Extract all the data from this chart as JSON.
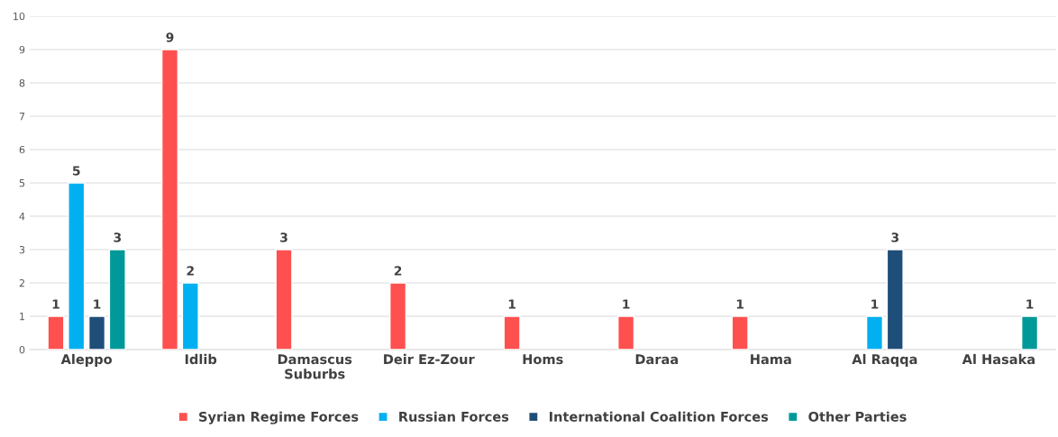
{
  "chart_data": {
    "type": "bar",
    "categories": [
      "Aleppo",
      "Idlib",
      "Damascus\nSuburbs",
      "Deir Ez-Zour",
      "Homs",
      "Daraa",
      "Hama",
      "Al Raqqa",
      "Al Hasaka"
    ],
    "series": [
      {
        "name": "Syrian Regime Forces",
        "color": "#ff5050",
        "values": [
          1,
          9,
          3,
          2,
          1,
          1,
          1,
          null,
          null
        ]
      },
      {
        "name": "Russian Forces",
        "color": "#00b0f0",
        "values": [
          5,
          2,
          null,
          null,
          null,
          null,
          null,
          1,
          null
        ]
      },
      {
        "name": "International Coalition Forces",
        "color": "#1f4e79",
        "values": [
          1,
          null,
          null,
          null,
          null,
          null,
          null,
          3,
          null
        ]
      },
      {
        "name": "Other Parties",
        "color": "#009999",
        "values": [
          3,
          null,
          null,
          null,
          null,
          null,
          null,
          null,
          1
        ]
      }
    ],
    "ylim": [
      0,
      10
    ],
    "yticks": [
      0,
      1,
      2,
      3,
      4,
      5,
      6,
      7,
      8,
      9,
      10
    ],
    "grid": "y",
    "legend": "bottom",
    "data_labels": true
  }
}
